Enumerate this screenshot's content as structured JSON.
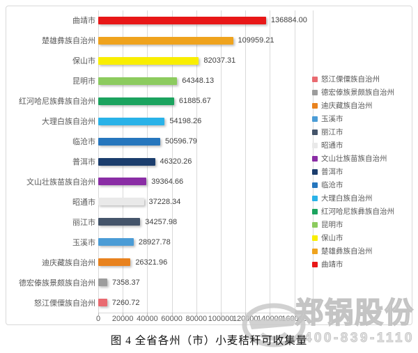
{
  "figure": {
    "caption": "图 4 全省各州（市）小麦秸秆可收集量"
  },
  "watermark": {
    "brand": "郑锅股份",
    "phone": "400-839-1110",
    "logo_icon": "ellipse-z-logo",
    "color": "#c9c9c9"
  },
  "chart_data": {
    "type": "bar",
    "orientation": "horizontal",
    "title": "",
    "xlabel": "",
    "ylabel": "",
    "grid": "vertical-on",
    "legend_position": "right",
    "xlim": [
      0,
      160000
    ],
    "x_tick_labels": [
      "0",
      "20000",
      "40000",
      "60000",
      "80000",
      "100000",
      "120000",
      "140000",
      "160000"
    ],
    "categories": [
      "曲靖市",
      "楚雄彝族自治州",
      "保山市",
      "昆明市",
      "红河哈尼族彝族自治州",
      "大理白族自治州",
      "临沧市",
      "普洱市",
      "文山壮族苗族自治州",
      "昭通市",
      "丽江市",
      "玉溪市",
      "迪庆藏族自治州",
      "德宏傣族景颇族自治州",
      "怒江傈僳族自治州"
    ],
    "values": [
      136884.0,
      109959.21,
      82037.31,
      64348.13,
      61885.67,
      54198.26,
      50596.79,
      46320.26,
      39364.66,
      37228.34,
      34257.98,
      28927.78,
      26321.96,
      7358.37,
      7260.72
    ],
    "value_labels": [
      "136884.00",
      "109959.21",
      "82037.31",
      "64348.13",
      "61885.67",
      "54198.26",
      "50596.79",
      "46320.26",
      "39364.66",
      "37228.34",
      "34257.98",
      "28927.78",
      "26321.96",
      "7358.37",
      "7260.72"
    ],
    "colors": [
      "#e81717",
      "#efa31d",
      "#f9ee00",
      "#8ccb5e",
      "#1ba35e",
      "#29b2e8",
      "#2676bd",
      "#1b3d6d",
      "#8a2da5",
      "#e9e9e9",
      "#44546a",
      "#4b9cd6",
      "#e8821e",
      "#9c9c9c",
      "#e96a70"
    ],
    "legend_note": "legend lists series bottom-to-top (reverse of bar order)"
  }
}
